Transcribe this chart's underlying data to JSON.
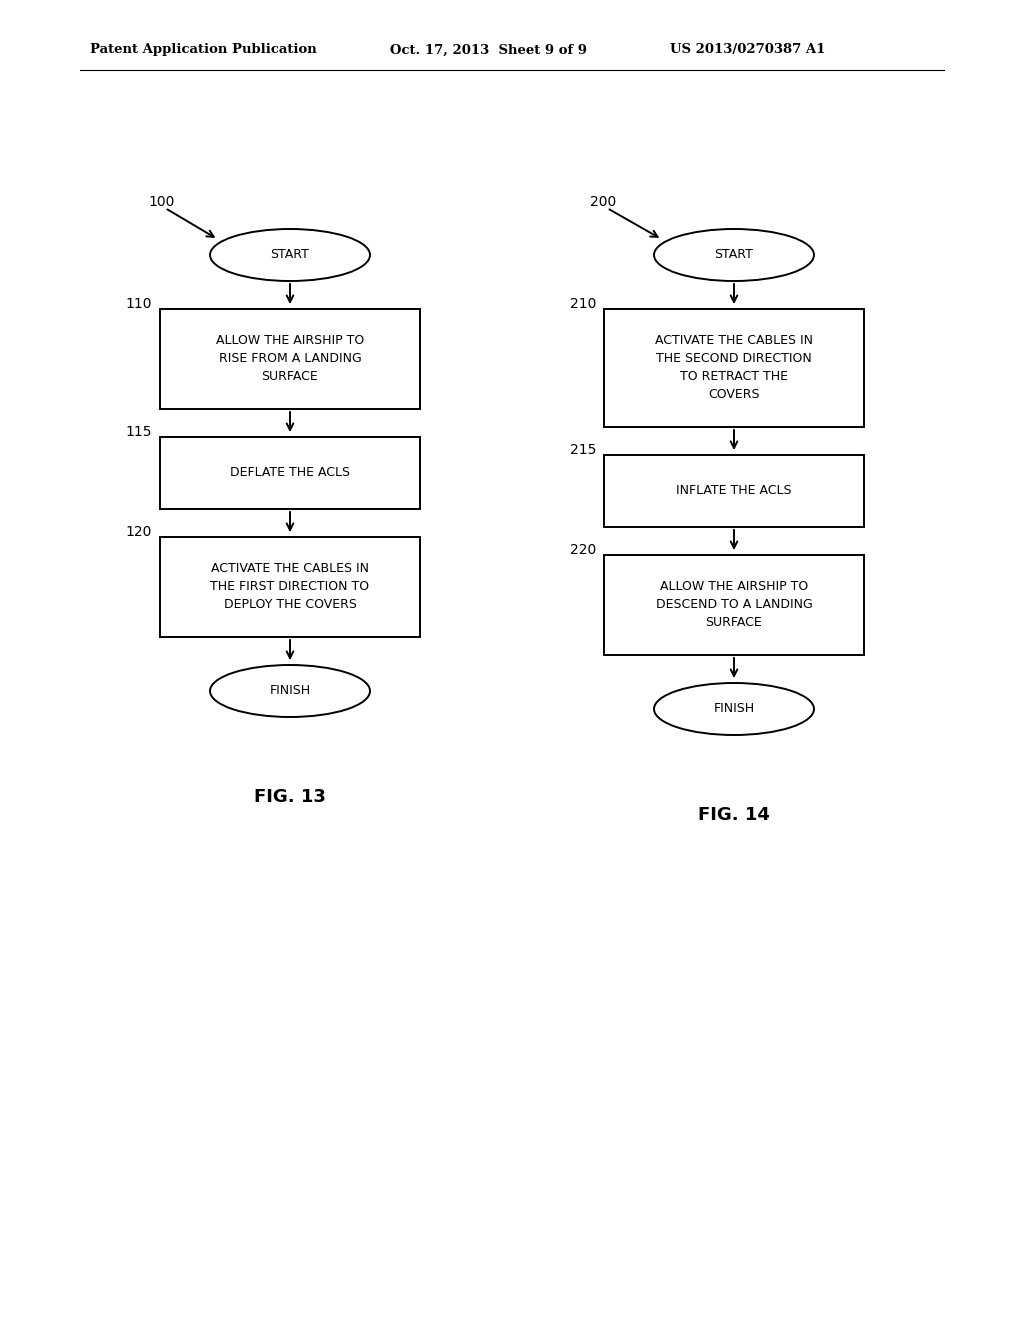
{
  "bg_color": "#ffffff",
  "header_left": "Patent Application Publication",
  "header_mid": "Oct. 17, 2013  Sheet 9 of 9",
  "header_right": "US 2013/0270387 A1",
  "fig13_label": "FIG. 13",
  "fig14_label": "FIG. 14",
  "lw": 1.4,
  "font_size_header": 9.5,
  "font_size_box": 9.0,
  "font_size_label": 9.5,
  "font_size_fig": 13,
  "font_size_ref": 10
}
